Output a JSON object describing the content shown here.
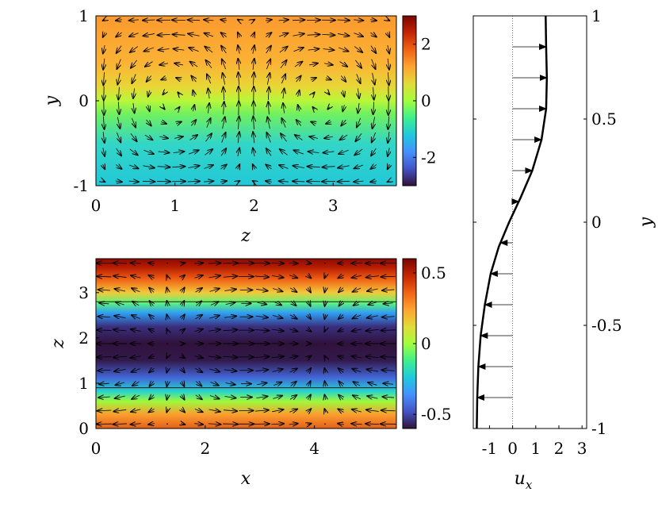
{
  "chart_data": [
    {
      "id": "top-left",
      "type": "heatmap",
      "xlabel": "z",
      "ylabel": "y",
      "xlim": [
        0,
        3.8
      ],
      "ylim": [
        -1,
        1
      ],
      "xticks": [
        0,
        1,
        2,
        3
      ],
      "yticks": [
        -1,
        0,
        1
      ],
      "xtick_labels": [
        "0",
        "1",
        "2",
        "3"
      ],
      "ytick_labels": [
        "-1",
        "0",
        "1"
      ],
      "colorbar": {
        "range": [
          -3,
          3
        ],
        "ticks": [
          2,
          0,
          -2
        ],
        "labels": [
          "2",
          "0",
          "-2"
        ]
      },
      "field_description": "field varies with y",
      "vortex_centers_z": [
        0.95,
        2.85
      ],
      "vortex_signs": [
        1,
        -1
      ]
    },
    {
      "id": "bottom-left",
      "type": "heatmap",
      "xlabel": "x",
      "ylabel": "z",
      "xlim": [
        0,
        5.5
      ],
      "ylim": [
        0,
        3.75
      ],
      "xticks": [
        0,
        2,
        4
      ],
      "yticks": [
        0,
        1,
        2,
        3
      ],
      "xtick_labels": [
        "0",
        "2",
        "4"
      ],
      "ytick_labels": [
        "0",
        "1",
        "2",
        "3"
      ],
      "colorbar": {
        "range": [
          -0.6,
          0.6
        ],
        "ticks": [
          0.5,
          0,
          -0.5
        ],
        "labels": [
          "0.5",
          "0",
          "-0.5"
        ]
      },
      "contour_lines_z": [
        0.9,
        2.8
      ],
      "min_band_z": 1.85
    },
    {
      "id": "right-profile",
      "type": "line",
      "xlabel": "u",
      "xlabel_sub": "x",
      "ylabel": "y",
      "xlim": [
        -1.7,
        3.2
      ],
      "ylim": [
        -1,
        1
      ],
      "xticks": [
        -1,
        0,
        1,
        2,
        3
      ],
      "xtick_labels": [
        "-1",
        "0",
        "1",
        "2",
        "3"
      ],
      "yticks": [
        -1,
        -0.5,
        0,
        0.5,
        1
      ],
      "ytick_labels": [
        "-1",
        "-0.5",
        "0",
        "0.5",
        "1"
      ],
      "series": [
        {
          "x": [
            -1.55,
            -1.53,
            -1.48,
            -1.38,
            -1.2,
            -0.95,
            -0.6,
            -0.15,
            0.35,
            0.85,
            1.25,
            1.45,
            1.48,
            1.45,
            1.43
          ],
          "y": [
            -1,
            -0.85,
            -0.7,
            -0.55,
            -0.4,
            -0.25,
            -0.12,
            0,
            0.12,
            0.25,
            0.4,
            0.55,
            0.7,
            0.85,
            1
          ]
        }
      ],
      "arrows_y": [
        -0.85,
        -0.7,
        -0.55,
        -0.4,
        -0.25,
        -0.1,
        0.1,
        0.25,
        0.4,
        0.55,
        0.7,
        0.85
      ]
    }
  ]
}
